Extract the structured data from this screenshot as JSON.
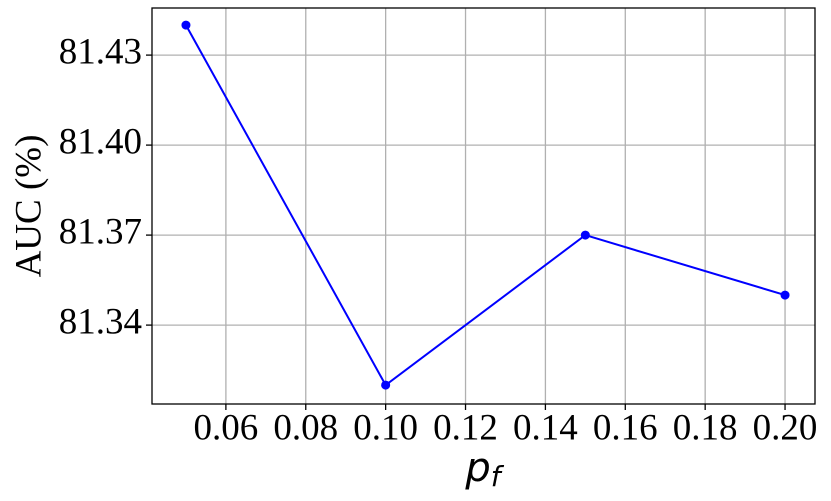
{
  "chart_data": {
    "type": "line",
    "ylabel": "AUC (%)",
    "xlabel": {
      "base": "p",
      "sub": "f"
    },
    "x": [
      0.05,
      0.1,
      0.15,
      0.2
    ],
    "series": [
      {
        "name": "AUC",
        "color": "#0000ff",
        "values": [
          81.44,
          81.32,
          81.37,
          81.35
        ]
      }
    ],
    "xlim": [
      0.0415,
      0.2075
    ],
    "ylim": [
      81.3137,
      81.4457
    ],
    "xticks": [
      0.06,
      0.08,
      {
        "value": 0.1,
        "label": "0.10"
      },
      0.12,
      0.14,
      0.16,
      0.18,
      {
        "value": 0.2,
        "label": "0.20"
      }
    ],
    "yticks": [
      81.34,
      81.37,
      {
        "value": 81.4,
        "label": "81.40"
      },
      81.43
    ],
    "grid": true
  }
}
